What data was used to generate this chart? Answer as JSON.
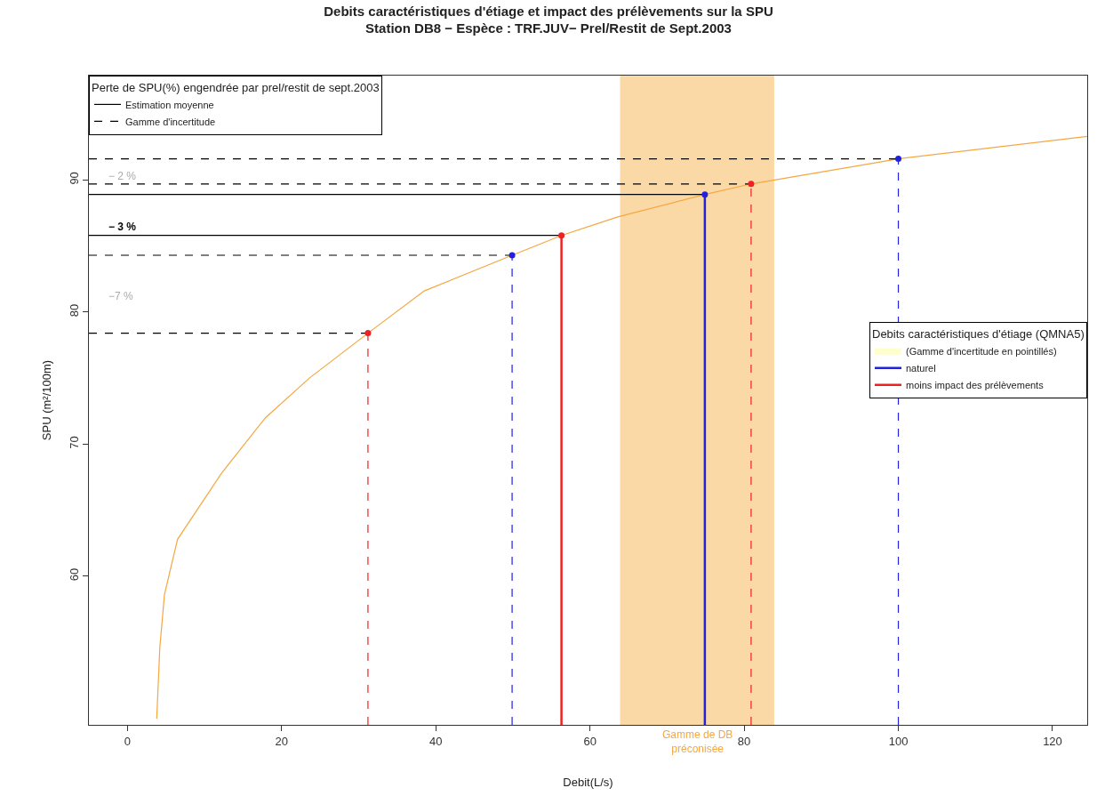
{
  "chart_data": {
    "type": "line",
    "title": "Debits caractéristiques d'étiage et impact des prélèvements sur la SPU",
    "subtitle": "Station DB8 − Espèce : TRF.JUV− Prel/Restit de Sept.2003",
    "xlabel": "Debit(L/s)",
    "ylabel": "SPU (m²/100m)",
    "legend_title": [
      "Perte de SPU(%) engendrée par prel/restit de sept.2003",
      "Debits caractéristiques d'étiage (QMNA5)"
    ],
    "xlim": [
      -5,
      124.5
    ],
    "ylim": [
      48.75,
      97.9
    ],
    "xticks": [
      0,
      20,
      40,
      60,
      80,
      100,
      120
    ],
    "yticks": [
      60,
      70,
      80,
      90
    ],
    "grid": false,
    "legend": "top left",
    "series": [
      {
        "color": "#f5a742",
        "x": [
          3.8,
          4.2,
          4.8,
          6.5,
          12.2,
          17.9,
          23.6,
          31.2,
          38.5,
          49.9,
          56.3,
          63.6,
          74.9,
          80.9,
          100,
          124.5
        ],
        "values": [
          49.2,
          54.6,
          58.6,
          62.8,
          67.8,
          72,
          75,
          78.4,
          81.6,
          84.3,
          85.8,
          87.2,
          88.9,
          89.7,
          91.6,
          93.3
        ]
      },
      {
        "type": "line",
        "name": "Estimation moyenne",
        "color": "#000000",
        "line_style": "solid",
        "x": [
          -5,
          74.9,
          null,
          -5,
          56.3
        ],
        "values": [
          88.9,
          88.9,
          null,
          85.8,
          85.8
        ]
      },
      {
        "type": "line",
        "name": "Gamme d'incertitude",
        "color": "#000000",
        "line_style": "dashed",
        "x": [
          -5,
          100,
          null,
          -5,
          80.9,
          null,
          -5,
          49.9,
          null,
          -5,
          31.2
        ],
        "values": [
          91.6,
          91.6,
          null,
          89.7,
          89.7,
          null,
          84.3,
          84.3,
          null,
          78.4,
          78.4
        ]
      },
      {
        "type": "area",
        "name": "(Gamme d'incertitude en pointillés)",
        "color": "#ffffcc"
      },
      {
        "type": "lollipop",
        "name": "naturel",
        "color": "#2222dd",
        "line_style": "solid",
        "x": [
          74.9
        ],
        "values": [
          88.9
        ]
      },
      {
        "type": "lollipop",
        "name": "moins impact des prélèvements",
        "color": "#ee2222",
        "line_style": "solid",
        "x": [
          56.3
        ],
        "values": [
          85.8
        ]
      },
      {
        "type": "lollipop",
        "color": "#2222dd",
        "line_style": "dashed",
        "x": [
          49.9,
          100
        ],
        "values": [
          84.3,
          91.6
        ]
      },
      {
        "type": "lollipop",
        "color": "#ee2222",
        "line_style": "dashed",
        "x": [
          31.2,
          80.9
        ],
        "values": [
          78.4,
          89.7
        ]
      }
    ],
    "bands": [
      {
        "axis": "x",
        "from": 63.9,
        "to": 83.9,
        "label": "Gamme de DB\npréconisée",
        "color": "#fbd9a6"
      }
    ],
    "annotations": [
      "− 2 %",
      "− 3 %",
      "−7 %"
    ]
  }
}
